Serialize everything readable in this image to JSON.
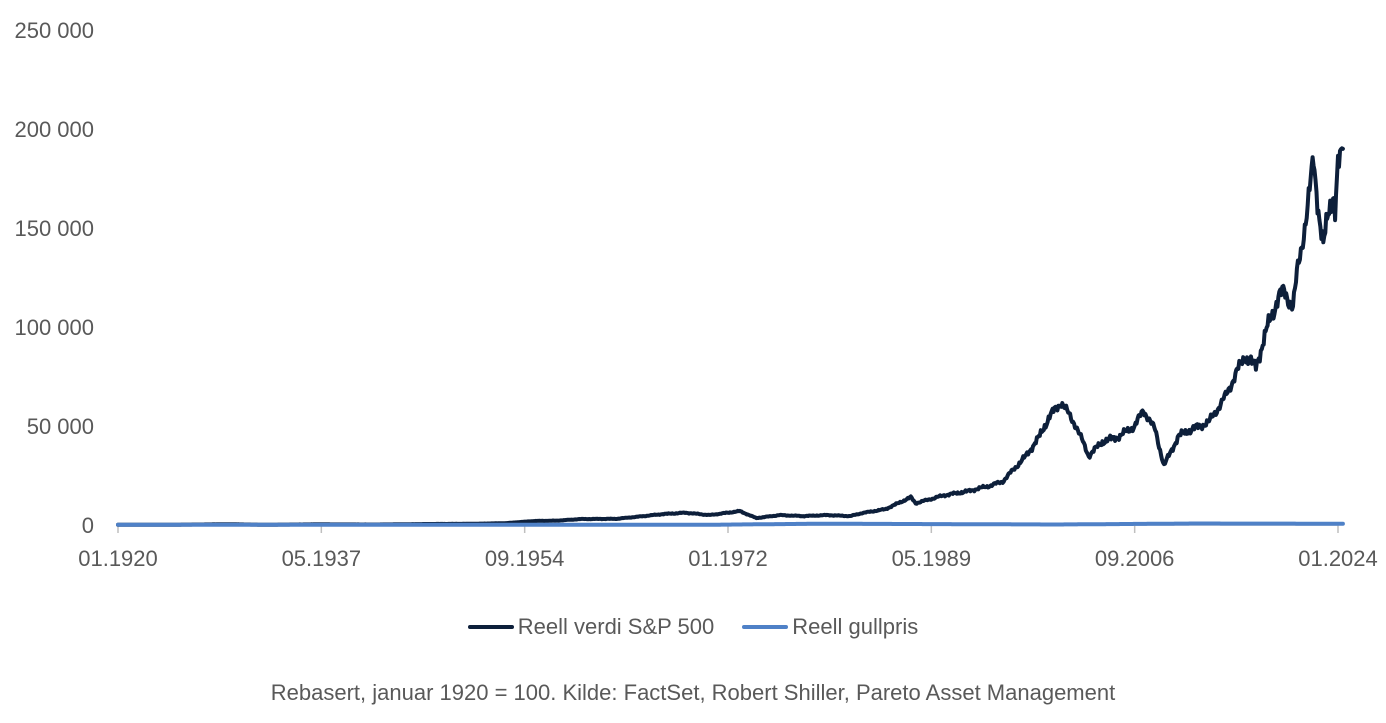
{
  "chart_data": {
    "type": "line",
    "title": "",
    "xlabel": "",
    "ylabel": "",
    "x_range": [
      "1920-01",
      "2024-06"
    ],
    "ylim": [
      0,
      250000
    ],
    "y_ticks": [
      0,
      50000,
      100000,
      150000,
      200000,
      250000
    ],
    "y_tick_labels": [
      "0",
      "50 000",
      "100 000",
      "150 000",
      "200 000",
      "250 000"
    ],
    "x_ticks": [
      "1920-01",
      "1937-05",
      "1954-09",
      "1972-01",
      "1989-05",
      "2006-09",
      "2024-01"
    ],
    "x_tick_labels": [
      "01.1920",
      "05.1937",
      "09.1954",
      "01.1972",
      "05.1989",
      "09.2006",
      "01.2024"
    ],
    "grid": false,
    "legend_position": "bottom",
    "series": [
      {
        "name": "Reell verdi S&P 500",
        "color": "#0d1f3a",
        "points": [
          [
            "1920-01",
            100
          ],
          [
            "1925-01",
            150
          ],
          [
            "1929-06",
            400
          ],
          [
            "1932-06",
            120
          ],
          [
            "1937-01",
            350
          ],
          [
            "1942-01",
            250
          ],
          [
            "1946-06",
            500
          ],
          [
            "1950-01",
            600
          ],
          [
            "1953-01",
            900
          ],
          [
            "1955-06",
            2000
          ],
          [
            "1957-06",
            2200
          ],
          [
            "1959-06",
            3000
          ],
          [
            "1962-06",
            3100
          ],
          [
            "1964-01",
            4000
          ],
          [
            "1966-06",
            5500
          ],
          [
            "1968-06",
            6200
          ],
          [
            "1970-06",
            5000
          ],
          [
            "1973-01",
            7000
          ],
          [
            "1974-06",
            3500
          ],
          [
            "1976-06",
            5000
          ],
          [
            "1978-06",
            4500
          ],
          [
            "1980-06",
            5000
          ],
          [
            "1982-06",
            4500
          ],
          [
            "1983-06",
            6000
          ],
          [
            "1985-06",
            8000
          ],
          [
            "1987-08",
            14000
          ],
          [
            "1988-01",
            11000
          ],
          [
            "1990-06",
            15000
          ],
          [
            "1992-06",
            17000
          ],
          [
            "1994-06",
            20000
          ],
          [
            "1995-06",
            22000
          ],
          [
            "1997-06",
            35000
          ],
          [
            "1998-08",
            45000
          ],
          [
            "1999-06",
            55000
          ],
          [
            "2000-06",
            62000
          ],
          [
            "2001-09",
            50000
          ],
          [
            "2002-10",
            35000
          ],
          [
            "2003-12",
            42000
          ],
          [
            "2005-06",
            45000
          ],
          [
            "2006-09",
            50000
          ],
          [
            "2007-06",
            58000
          ],
          [
            "2008-06",
            48000
          ],
          [
            "2009-03",
            30000
          ],
          [
            "2010-06",
            45000
          ],
          [
            "2011-06",
            48000
          ],
          [
            "2013-01",
            52000
          ],
          [
            "2014-06",
            65000
          ],
          [
            "2015-06",
            78000
          ],
          [
            "2016-02",
            85000
          ],
          [
            "2017-01",
            80000
          ],
          [
            "2018-01",
            100000
          ],
          [
            "2018-12",
            115000
          ],
          [
            "2019-06",
            118000
          ],
          [
            "2020-03",
            110000
          ],
          [
            "2020-08",
            130000
          ],
          [
            "2021-06",
            160000
          ],
          [
            "2021-12",
            185000
          ],
          [
            "2022-06",
            155000
          ],
          [
            "2022-10",
            140000
          ],
          [
            "2023-03",
            158000
          ],
          [
            "2023-08",
            168000
          ],
          [
            "2023-10",
            158000
          ],
          [
            "2024-01",
            180000
          ],
          [
            "2024-06",
            190000
          ]
        ]
      },
      {
        "name": "Reell gullpris",
        "color": "#4f81c7",
        "points": [
          [
            "1920-01",
            100
          ],
          [
            "1934-01",
            160
          ],
          [
            "1970-01",
            100
          ],
          [
            "1980-01",
            650
          ],
          [
            "2000-01",
            250
          ],
          [
            "2011-09",
            750
          ],
          [
            "2024-06",
            650
          ]
        ]
      }
    ]
  },
  "legend": {
    "items": [
      {
        "label": "Reell verdi S&P 500",
        "color": "#0d1f3a"
      },
      {
        "label": "Reell gullpris",
        "color": "#4f81c7"
      }
    ]
  },
  "source_note": "Rebasert, januar 1920 = 100. Kilde: FactSet, Robert Shiller, Pareto Asset Management"
}
